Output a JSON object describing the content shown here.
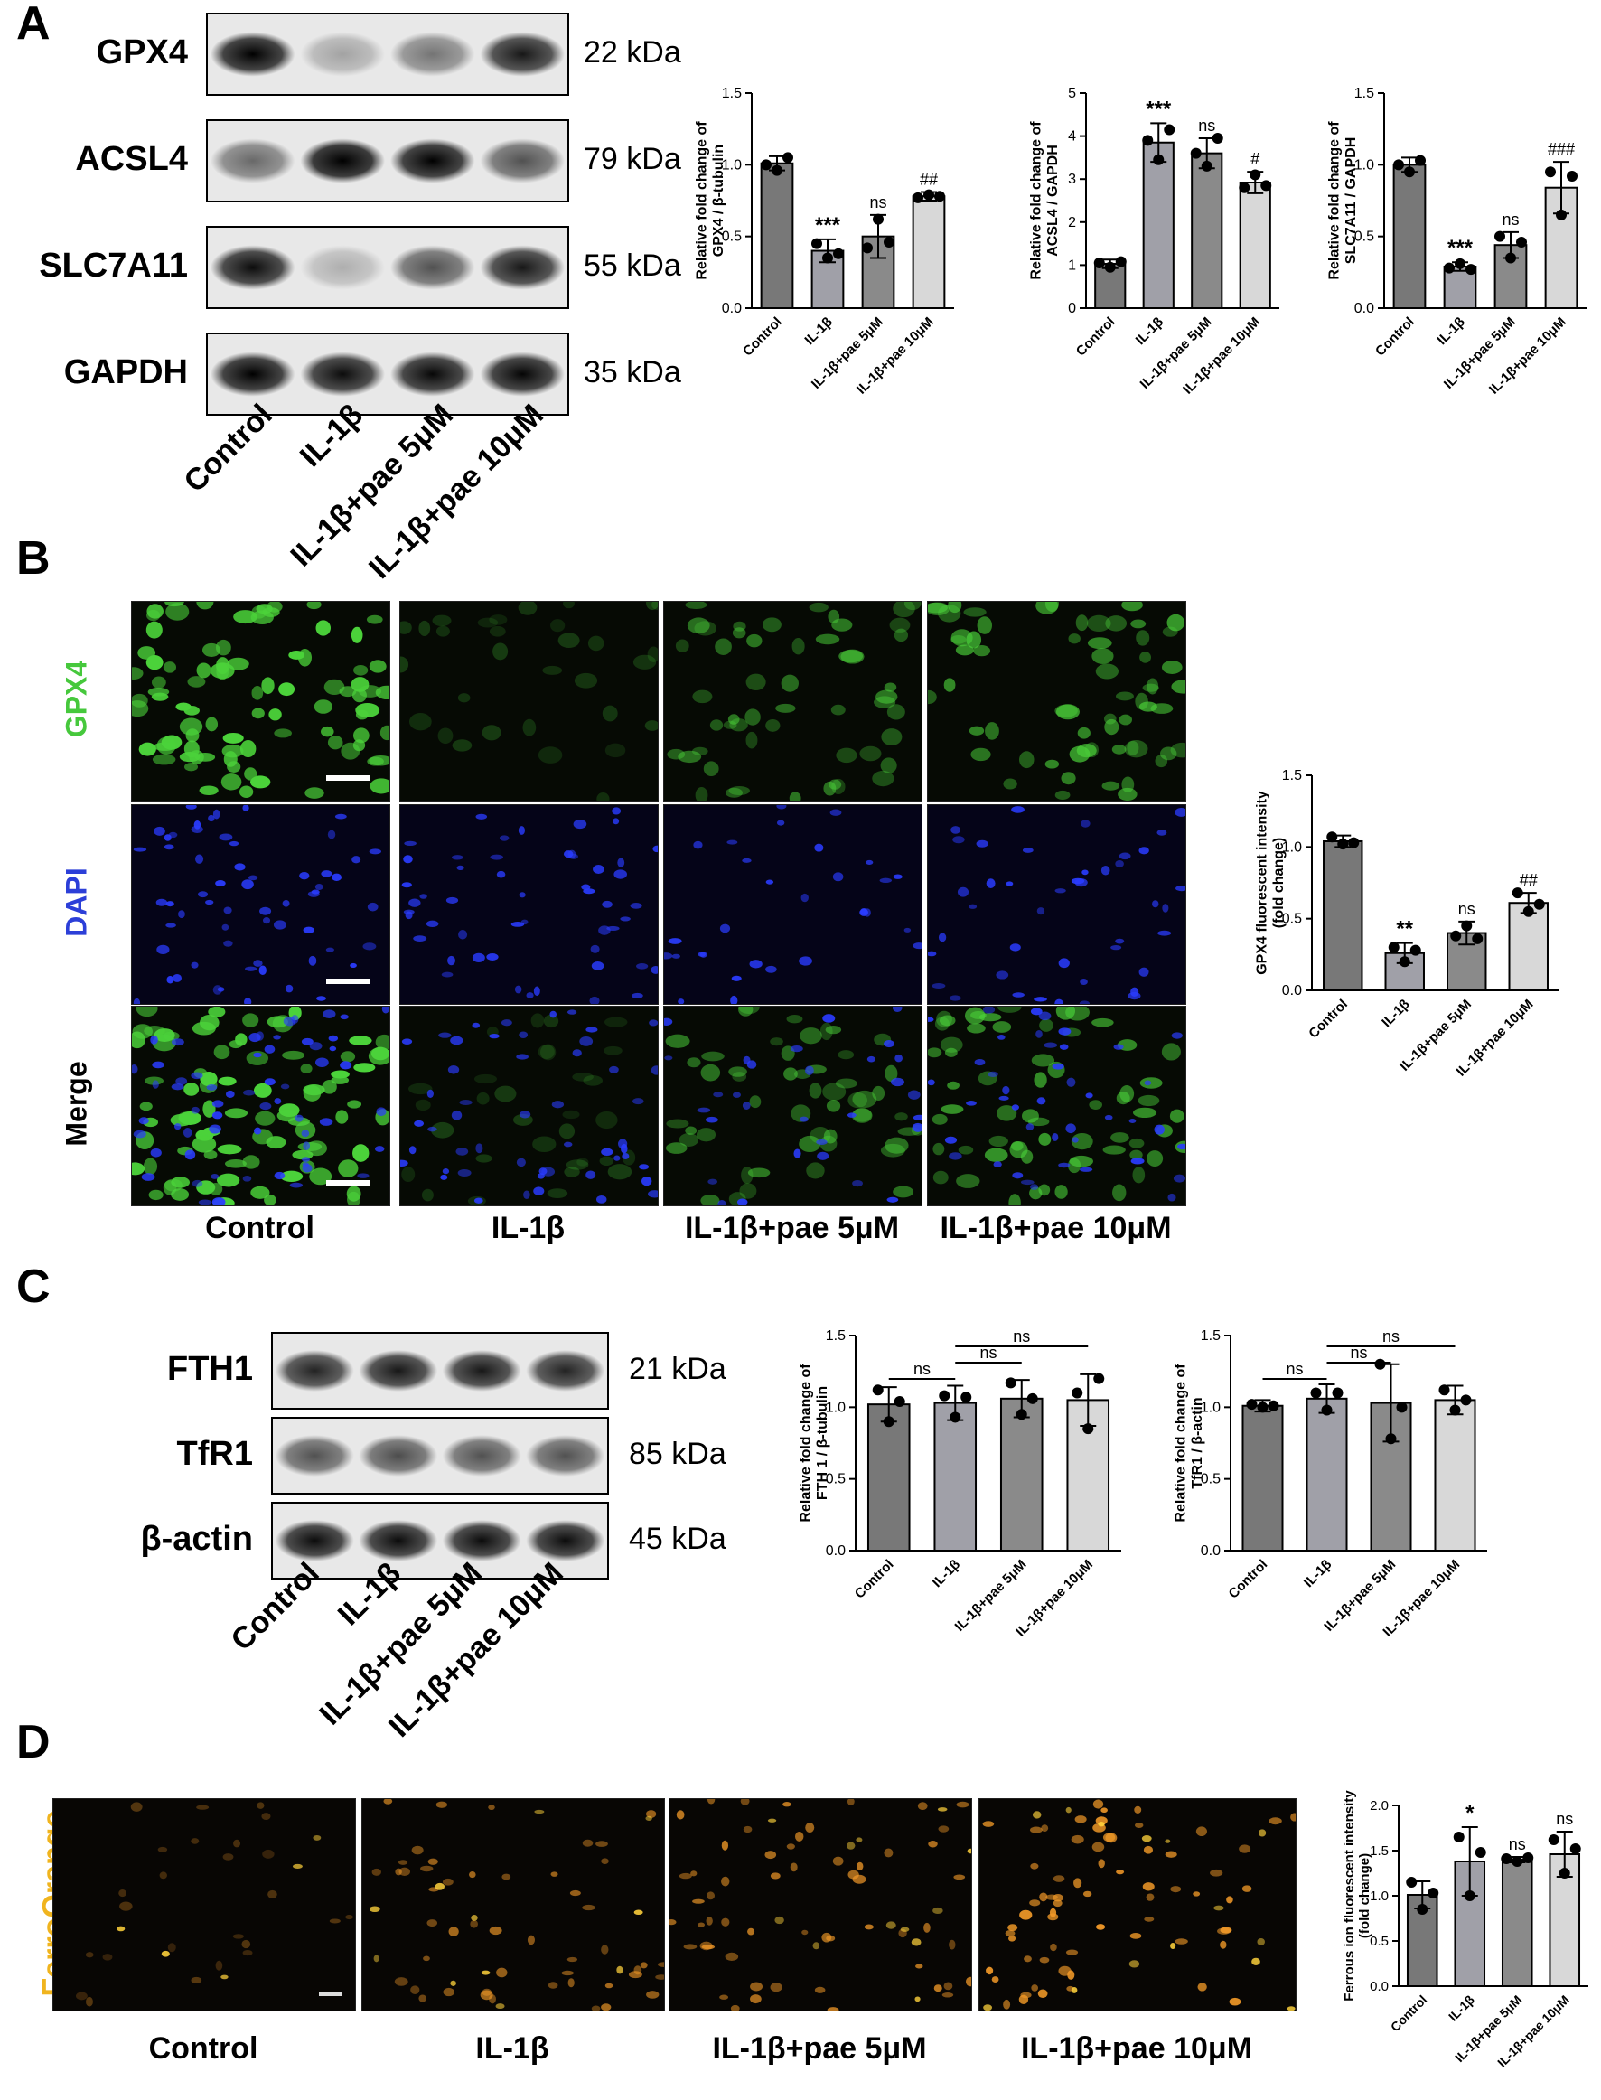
{
  "panels": {
    "a": "A",
    "b": "B",
    "c": "C",
    "d": "D"
  },
  "groups": [
    "Control",
    "IL-1β",
    "IL-1β+pae 5μM",
    "IL-1β+pae 10μM"
  ],
  "blots_a": [
    {
      "name": "GPX4",
      "kda": "22 kDa",
      "intensities": [
        0.95,
        0.25,
        0.45,
        0.85
      ]
    },
    {
      "name": "ACSL4",
      "kda": "79 kDa",
      "intensities": [
        0.5,
        1.0,
        0.95,
        0.6
      ]
    },
    {
      "name": "SLC7A11",
      "kda": "55 kDa",
      "intensities": [
        0.9,
        0.2,
        0.6,
        0.85
      ]
    },
    {
      "name": "GAPDH",
      "kda": "35 kDa",
      "intensities": [
        0.95,
        0.9,
        0.92,
        0.93
      ]
    }
  ],
  "blots_c": [
    {
      "name": "FTH1",
      "kda": "21 kDa",
      "intensities": [
        0.8,
        0.85,
        0.85,
        0.8
      ]
    },
    {
      "name": "TfR1",
      "kda": "85 kDa",
      "intensities": [
        0.6,
        0.62,
        0.6,
        0.6
      ]
    },
    {
      "name": "β-actin",
      "kda": "45 kDa",
      "intensities": [
        0.9,
        0.9,
        0.9,
        0.9
      ]
    }
  ],
  "micro_b": {
    "rows": [
      "GPX4",
      "DAPI",
      "Merge"
    ],
    "row_colors": [
      "#46c83c",
      "#2c3fd8",
      "#000000"
    ],
    "green_level": [
      0.95,
      0.15,
      0.45,
      0.6
    ],
    "blue_density": [
      1.0,
      0.85,
      0.5,
      0.7
    ]
  },
  "micro_d": {
    "label": "FerroOrange",
    "label_color": "#f0b41e",
    "orange_density": [
      0.35,
      0.7,
      0.8,
      0.95
    ]
  },
  "colors": {
    "bar": [
      "#787878",
      "#a0a0a8",
      "#8a8a8a",
      "#d8d8d8"
    ]
  },
  "chart_data": [
    {
      "id": "a1",
      "type": "bar",
      "categories": [
        "Control",
        "IL-1β",
        "IL-1β+pae 5μM",
        "IL-1β+pae 10μM"
      ],
      "values": [
        1.01,
        0.4,
        0.5,
        0.78
      ],
      "errors": [
        0.05,
        0.08,
        0.15,
        0.03
      ],
      "points": [
        [
          1.0,
          0.96,
          1.05
        ],
        [
          0.45,
          0.35,
          0.38
        ],
        [
          0.42,
          0.62,
          0.46
        ],
        [
          0.77,
          0.79,
          0.78
        ]
      ],
      "ylabel": "Relative fold change of\nGPX4 / β-tubulin",
      "ylim": [
        0,
        1.5
      ],
      "yticks": [
        "0.0",
        "0.5",
        "1.0",
        "1.5"
      ],
      "sig": [
        "",
        "***",
        "ns",
        "##"
      ]
    },
    {
      "id": "a2",
      "type": "bar",
      "categories": [
        "Control",
        "IL-1β",
        "IL-1β+pae 5μM",
        "IL-1β+pae 10μM"
      ],
      "values": [
        1.03,
        3.85,
        3.6,
        2.92
      ],
      "errors": [
        0.1,
        0.45,
        0.35,
        0.25
      ],
      "points": [
        [
          1.05,
          0.95,
          1.08
        ],
        [
          3.9,
          3.45,
          4.15
        ],
        [
          3.6,
          3.3,
          3.95
        ],
        [
          2.8,
          3.1,
          2.85
        ]
      ],
      "ylabel": "Relative fold change of\nACSL4 / GAPDH",
      "ylim": [
        0,
        5
      ],
      "yticks": [
        "0",
        "1",
        "2",
        "3",
        "4",
        "5"
      ],
      "sig": [
        "",
        "***",
        "ns",
        "#"
      ]
    },
    {
      "id": "a3",
      "type": "bar",
      "categories": [
        "Control",
        "IL-1β",
        "IL-1β+pae 5μM",
        "IL-1β+pae 10μM"
      ],
      "values": [
        1.0,
        0.29,
        0.44,
        0.84
      ],
      "errors": [
        0.05,
        0.03,
        0.09,
        0.18
      ],
      "points": [
        [
          1.0,
          0.95,
          1.03
        ],
        [
          0.28,
          0.31,
          0.27
        ],
        [
          0.5,
          0.35,
          0.46
        ],
        [
          0.95,
          0.65,
          0.92
        ]
      ],
      "ylabel": "Relative fold change of\nSLC7A11 / GAPDH",
      "ylim": [
        0,
        1.5
      ],
      "yticks": [
        "0.0",
        "0.5",
        "1.0",
        "1.5"
      ],
      "sig": [
        "",
        "***",
        "ns",
        "###"
      ]
    },
    {
      "id": "b1",
      "type": "bar",
      "categories": [
        "Control",
        "IL-1β",
        "IL-1β+pae 5μM",
        "IL-1β+pae 10μM"
      ],
      "values": [
        1.04,
        0.26,
        0.4,
        0.61
      ],
      "errors": [
        0.04,
        0.07,
        0.08,
        0.07
      ],
      "points": [
        [
          1.07,
          1.02,
          1.03
        ],
        [
          0.3,
          0.2,
          0.28
        ],
        [
          0.38,
          0.45,
          0.36
        ],
        [
          0.68,
          0.55,
          0.6
        ]
      ],
      "ylabel": "GPX4 fluorescent intensity\n(fold change)",
      "ylim": [
        0,
        1.5
      ],
      "yticks": [
        "0.0",
        "0.5",
        "1.0",
        "1.5"
      ],
      "sig": [
        "",
        "**",
        "ns",
        "##"
      ]
    },
    {
      "id": "c1",
      "type": "bar",
      "categories": [
        "Control",
        "IL-1β",
        "IL-1β+pae 5μM",
        "IL-1β+pae 10μM"
      ],
      "values": [
        1.02,
        1.03,
        1.06,
        1.05
      ],
      "errors": [
        0.12,
        0.12,
        0.13,
        0.18
      ],
      "points": [
        [
          1.12,
          0.9,
          1.04
        ],
        [
          1.08,
          0.93,
          1.07
        ],
        [
          1.17,
          0.95,
          1.06
        ],
        [
          1.1,
          0.85,
          1.2
        ]
      ],
      "ylabel": "Relative fold change of\nFTH 1 / β-tubulin",
      "ylim": [
        0,
        1.5
      ],
      "yticks": [
        "0.0",
        "0.5",
        "1.0",
        "1.5"
      ],
      "brackets": [
        {
          "from": 0,
          "to": 1,
          "label": "ns",
          "level": 0
        },
        {
          "from": 1,
          "to": 2,
          "label": "ns",
          "level": 1
        },
        {
          "from": 1,
          "to": 3,
          "label": "ns",
          "level": 2
        }
      ]
    },
    {
      "id": "c2",
      "type": "bar",
      "categories": [
        "Control",
        "IL-1β",
        "IL-1β+pae 5μM",
        "IL-1β+pae 10μM"
      ],
      "values": [
        1.01,
        1.06,
        1.03,
        1.05
      ],
      "errors": [
        0.04,
        0.1,
        0.27,
        0.1
      ],
      "points": [
        [
          1.02,
          1.0,
          1.01
        ],
        [
          1.1,
          0.98,
          1.1
        ],
        [
          1.3,
          0.78,
          1.0
        ],
        [
          1.12,
          0.98,
          1.05
        ]
      ],
      "ylabel": "Relative fold change of\nTfR1 / β-actin",
      "ylim": [
        0,
        1.5
      ],
      "yticks": [
        "0.0",
        "0.5",
        "1.0",
        "1.5"
      ],
      "brackets": [
        {
          "from": 0,
          "to": 1,
          "label": "ns",
          "level": 0
        },
        {
          "from": 1,
          "to": 2,
          "label": "ns",
          "level": 1
        },
        {
          "from": 1,
          "to": 3,
          "label": "ns",
          "level": 2
        }
      ]
    },
    {
      "id": "d1",
      "type": "bar",
      "categories": [
        "Control",
        "IL-1β",
        "IL-1β+pae 5μM",
        "IL-1β+pae 10μM"
      ],
      "values": [
        1.01,
        1.38,
        1.4,
        1.46
      ],
      "errors": [
        0.15,
        0.38,
        0.03,
        0.25
      ],
      "points": [
        [
          1.15,
          0.85,
          1.03
        ],
        [
          1.65,
          1.0,
          1.48
        ],
        [
          1.41,
          1.38,
          1.42
        ],
        [
          1.62,
          1.25,
          1.52
        ]
      ],
      "ylabel": "Ferrous ion fluorescent intensity\n(fold change)",
      "ylim": [
        0,
        2.0
      ],
      "yticks": [
        "0.0",
        "0.5",
        "1.0",
        "1.5",
        "2.0"
      ],
      "sig": [
        "",
        "*",
        "ns",
        "ns"
      ]
    }
  ]
}
